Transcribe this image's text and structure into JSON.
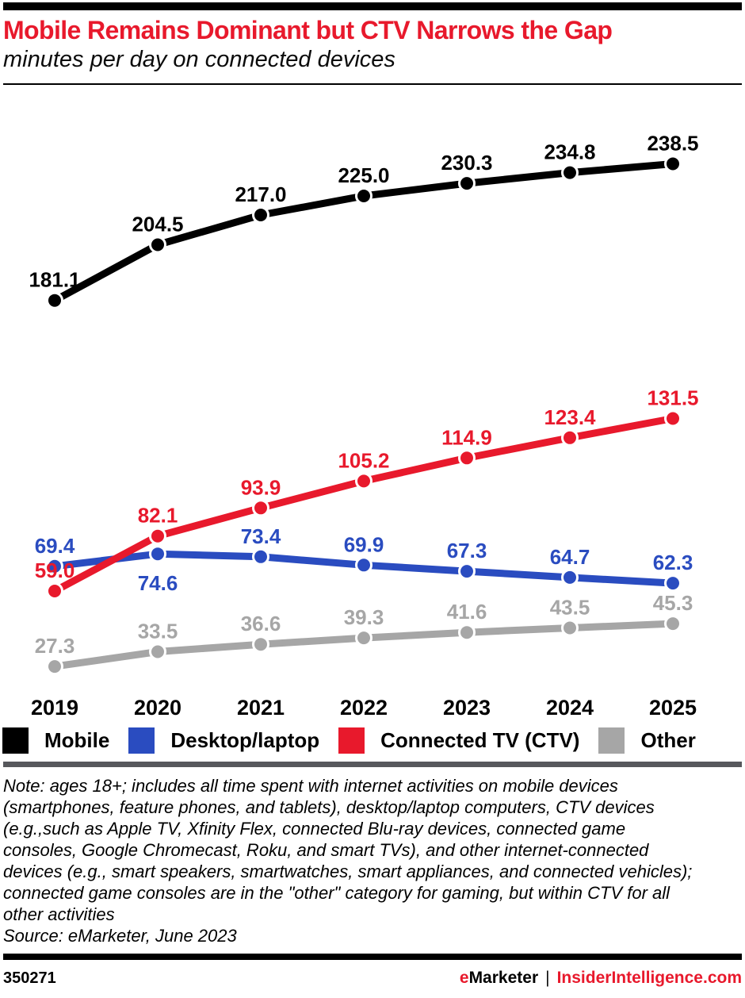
{
  "header": {
    "title": "Mobile Remains Dominant but CTV Narrows the Gap",
    "subtitle": "minutes per day on connected devices"
  },
  "colors": {
    "accent_red": "#e8192c",
    "blue": "#2a4cc0",
    "gray": "#a6a6a6",
    "black": "#000000",
    "legend_divider": "#57585c"
  },
  "chart_data": {
    "type": "line",
    "title": "Mobile Remains Dominant but CTV Narrows the Gap",
    "subtitle": "minutes per day on connected devices",
    "x": [
      "2019",
      "2020",
      "2021",
      "2022",
      "2023",
      "2024",
      "2025"
    ],
    "series": [
      {
        "name": "Mobile",
        "color": "#000000",
        "values": [
          181.1,
          204.5,
          217.0,
          225.0,
          230.3,
          234.8,
          238.5
        ]
      },
      {
        "name": "Desktop/laptop",
        "color": "#2a4cc0",
        "values": [
          69.4,
          74.6,
          73.4,
          69.9,
          67.3,
          64.7,
          62.3
        ],
        "label_below_indices": [
          1
        ]
      },
      {
        "name": "Connected TV (CTV)",
        "color": "#e8192c",
        "values": [
          59.0,
          82.1,
          93.9,
          105.2,
          114.9,
          123.4,
          131.5
        ]
      },
      {
        "name": "Other",
        "color": "#a6a6a6",
        "values": [
          27.3,
          33.5,
          36.6,
          39.3,
          41.6,
          43.5,
          45.3
        ]
      }
    ],
    "xlabel": "",
    "ylabel": "",
    "ylim": [
      0,
      266
    ],
    "grid": false,
    "data_labels": true,
    "legend_position": "bottom"
  },
  "note_lines": [
    "Note: ages 18+; includes all time spent with internet activities on mobile devices",
    "(smartphones, feature phones, and tablets), desktop/laptop computers, CTV devices",
    "(e.g.,such as Apple TV, Xfinity Flex, connected Blu-ray devices, connected game",
    "consoles, Google Chromecast, Roku, and smart TVs), and other internet-connected",
    "devices (e.g., smart speakers, smartwatches, smart appliances, and connected vehicles);",
    "connected game consoles are in the \"other\" category for gaming, but within CTV for all",
    "other activities",
    "Source: eMarketer, June 2023"
  ],
  "footer": {
    "chart_id": "350271",
    "brand_e": "e",
    "brand_rest": "Marketer",
    "separator": "|",
    "site": "InsiderIntelligence.com"
  }
}
